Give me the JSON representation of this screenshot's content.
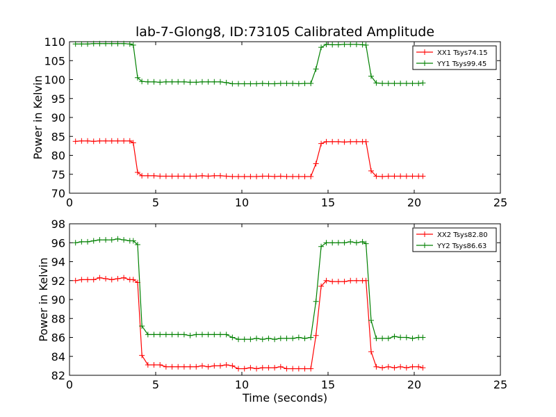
{
  "figure": {
    "title": "lab-7-Glong8, ID:73105 Calibrated Amplitude",
    "xlabel": "Time (seconds)"
  },
  "chart_data": [
    {
      "type": "line",
      "ylabel": "Power in Kelvin",
      "xlim": [
        0,
        25
      ],
      "ylim": [
        70,
        110
      ],
      "xticks": [
        0,
        5,
        10,
        15,
        20,
        25
      ],
      "yticks": [
        70,
        75,
        80,
        85,
        90,
        95,
        100,
        105,
        110
      ],
      "legend_position": "top-right",
      "marker": "+",
      "grid": false,
      "x": [
        0.35,
        0.7,
        1.05,
        1.4,
        1.75,
        2.1,
        2.45,
        2.8,
        3.15,
        3.5,
        3.7,
        3.95,
        4.2,
        4.55,
        4.9,
        5.25,
        5.6,
        5.95,
        6.3,
        6.65,
        7.0,
        7.35,
        7.7,
        8.05,
        8.4,
        8.75,
        9.1,
        9.45,
        9.8,
        10.15,
        10.5,
        10.85,
        11.2,
        11.55,
        11.9,
        12.25,
        12.6,
        12.95,
        13.3,
        13.65,
        14.0,
        14.3,
        14.6,
        14.9,
        15.25,
        15.6,
        15.95,
        16.3,
        16.65,
        17.0,
        17.2,
        17.5,
        17.8,
        18.15,
        18.5,
        18.85,
        19.2,
        19.55,
        19.9,
        20.25,
        20.5
      ],
      "series": [
        {
          "name": "XX1 Tsys74.15",
          "color": "#ff0000",
          "values": [
            83.7,
            83.8,
            83.8,
            83.7,
            83.8,
            83.8,
            83.8,
            83.8,
            83.8,
            83.8,
            83.3,
            75.5,
            74.6,
            74.6,
            74.6,
            74.5,
            74.5,
            74.5,
            74.5,
            74.5,
            74.5,
            74.5,
            74.6,
            74.5,
            74.6,
            74.6,
            74.5,
            74.4,
            74.4,
            74.4,
            74.4,
            74.4,
            74.5,
            74.5,
            74.4,
            74.5,
            74.4,
            74.4,
            74.4,
            74.4,
            74.4,
            77.8,
            83.1,
            83.6,
            83.6,
            83.6,
            83.5,
            83.6,
            83.6,
            83.6,
            83.6,
            75.9,
            74.5,
            74.4,
            74.5,
            74.5,
            74.5,
            74.5,
            74.5,
            74.5,
            74.5
          ]
        },
        {
          "name": "YY1 Tsys99.45",
          "color": "#008000",
          "values": [
            109.4,
            109.4,
            109.4,
            109.5,
            109.5,
            109.5,
            109.5,
            109.5,
            109.5,
            109.4,
            109.1,
            100.5,
            99.5,
            99.4,
            99.4,
            99.3,
            99.4,
            99.4,
            99.4,
            99.4,
            99.3,
            99.3,
            99.4,
            99.4,
            99.4,
            99.4,
            99.2,
            98.9,
            98.9,
            98.9,
            98.9,
            98.9,
            99.0,
            98.9,
            98.9,
            99.0,
            99.0,
            99.0,
            98.9,
            99.0,
            99.0,
            102.8,
            108.5,
            109.3,
            109.2,
            109.2,
            109.3,
            109.3,
            109.3,
            109.2,
            109.1,
            100.9,
            99.1,
            99.0,
            99.0,
            99.0,
            99.0,
            99.0,
            99.0,
            99.0,
            99.1
          ]
        }
      ]
    },
    {
      "type": "line",
      "ylabel": "Power in Kelvin",
      "xlabel": "Time (seconds)",
      "xlim": [
        0,
        25
      ],
      "ylim": [
        82,
        98
      ],
      "xticks": [
        0,
        5,
        10,
        15,
        20,
        25
      ],
      "yticks": [
        82,
        84,
        86,
        88,
        90,
        92,
        94,
        96,
        98
      ],
      "legend_position": "top-right",
      "marker": "+",
      "grid": false,
      "x": [
        0.35,
        0.7,
        1.05,
        1.4,
        1.75,
        2.1,
        2.45,
        2.8,
        3.15,
        3.5,
        3.7,
        3.95,
        4.2,
        4.55,
        4.9,
        5.25,
        5.6,
        5.95,
        6.3,
        6.65,
        7.0,
        7.35,
        7.7,
        8.05,
        8.4,
        8.75,
        9.1,
        9.45,
        9.8,
        10.15,
        10.5,
        10.85,
        11.2,
        11.55,
        11.9,
        12.25,
        12.6,
        12.95,
        13.3,
        13.65,
        14.0,
        14.3,
        14.6,
        14.9,
        15.25,
        15.6,
        15.95,
        16.3,
        16.65,
        17.0,
        17.2,
        17.5,
        17.8,
        18.15,
        18.5,
        18.85,
        19.2,
        19.55,
        19.9,
        20.25,
        20.5
      ],
      "series": [
        {
          "name": "XX2 Tsys82.80",
          "color": "#ff0000",
          "values": [
            92.0,
            92.1,
            92.1,
            92.1,
            92.3,
            92.2,
            92.1,
            92.2,
            92.3,
            92.1,
            92.1,
            91.8,
            84.1,
            83.1,
            83.1,
            83.1,
            82.9,
            82.9,
            82.9,
            82.9,
            82.9,
            82.9,
            83.0,
            82.9,
            83.0,
            83.0,
            83.1,
            83.0,
            82.7,
            82.7,
            82.8,
            82.7,
            82.8,
            82.8,
            82.8,
            82.9,
            82.7,
            82.7,
            82.7,
            82.7,
            82.7,
            86.2,
            91.4,
            92.0,
            91.9,
            91.9,
            91.9,
            92.0,
            92.0,
            92.0,
            92.0,
            84.5,
            82.9,
            82.8,
            82.9,
            82.8,
            82.9,
            82.8,
            82.9,
            82.9,
            82.8
          ]
        },
        {
          "name": "YY2 Tsys86.63",
          "color": "#008000",
          "values": [
            96.0,
            96.1,
            96.1,
            96.2,
            96.3,
            96.3,
            96.3,
            96.4,
            96.3,
            96.2,
            96.2,
            95.8,
            87.2,
            86.3,
            86.3,
            86.3,
            86.3,
            86.3,
            86.3,
            86.3,
            86.2,
            86.3,
            86.3,
            86.3,
            86.3,
            86.3,
            86.3,
            86.0,
            85.8,
            85.8,
            85.8,
            85.9,
            85.8,
            85.9,
            85.8,
            85.9,
            85.9,
            85.9,
            86.0,
            85.9,
            86.0,
            89.8,
            95.6,
            96.0,
            96.0,
            96.0,
            96.0,
            96.1,
            96.0,
            96.1,
            95.9,
            87.8,
            85.9,
            85.9,
            85.9,
            86.1,
            86.0,
            86.0,
            85.9,
            86.0,
            86.0
          ]
        }
      ]
    }
  ]
}
